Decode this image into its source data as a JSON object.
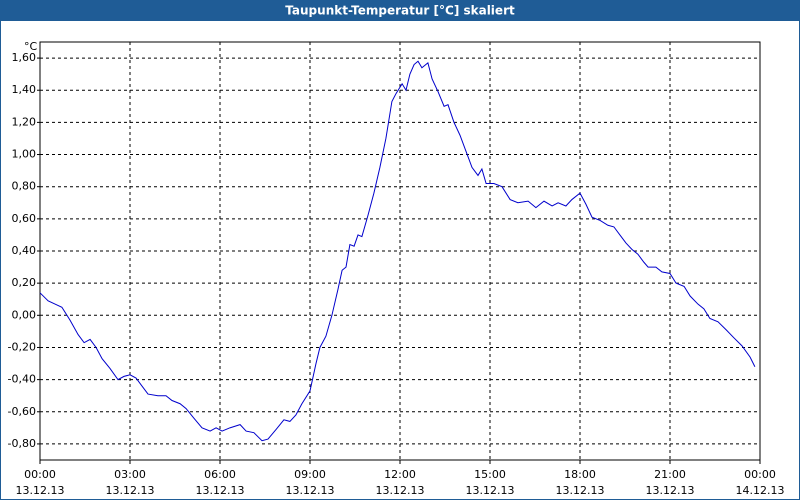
{
  "chart_data": {
    "type": "line",
    "title": "Taupunkt-Temperatur [°C] skaliert",
    "y_label": "°C",
    "xlim": [
      0,
      24
    ],
    "ylim": [
      -0.9,
      1.7
    ],
    "grid": true,
    "xticks": [
      {
        "value": 0,
        "label": "00:00",
        "date": "13.12.13"
      },
      {
        "value": 3,
        "label": "03:00",
        "date": "13.12.13"
      },
      {
        "value": 6,
        "label": "06:00",
        "date": "13.12.13"
      },
      {
        "value": 9,
        "label": "09:00",
        "date": "13.12.13"
      },
      {
        "value": 12,
        "label": "12:00",
        "date": "13.12.13"
      },
      {
        "value": 15,
        "label": "15:00",
        "date": "13.12.13"
      },
      {
        "value": 18,
        "label": "18:00",
        "date": "13.12.13"
      },
      {
        "value": 21,
        "label": "21:00",
        "date": "13.12.13"
      },
      {
        "value": 24,
        "label": "00:00",
        "date": "14.12.13"
      }
    ],
    "yticks": [
      {
        "value": 1.6,
        "label": "1,60"
      },
      {
        "value": 1.4,
        "label": "1,40"
      },
      {
        "value": 1.2,
        "label": "1,20"
      },
      {
        "value": 1.0,
        "label": "1,00"
      },
      {
        "value": 0.8,
        "label": "0,80"
      },
      {
        "value": 0.6,
        "label": "0,60"
      },
      {
        "value": 0.4,
        "label": "0,40"
      },
      {
        "value": 0.2,
        "label": "0,20"
      },
      {
        "value": 0,
        "label": "0,00"
      },
      {
        "value": -0.2,
        "label": "-0,20"
      },
      {
        "value": -0.4,
        "label": "-0,40"
      },
      {
        "value": -0.6,
        "label": "-0,60"
      },
      {
        "value": -0.8,
        "label": "-0,80"
      }
    ],
    "series": [
      {
        "color": "#0000cc",
        "x": [
          0,
          0.27,
          0.5,
          0.73,
          1.0,
          1.27,
          1.47,
          1.67,
          1.87,
          2.07,
          2.33,
          2.6,
          2.8,
          3.0,
          3.2,
          3.4,
          3.6,
          3.93,
          4.2,
          4.4,
          4.67,
          4.87,
          5.13,
          5.4,
          5.67,
          5.87,
          6.07,
          6.33,
          6.67,
          6.87,
          7.13,
          7.4,
          7.6,
          7.87,
          8.13,
          8.33,
          8.53,
          8.73,
          9.0,
          9.2,
          9.33,
          9.53,
          9.73,
          9.93,
          10.07,
          10.2,
          10.33,
          10.47,
          10.6,
          10.73,
          10.93,
          11.13,
          11.33,
          11.53,
          11.73,
          11.87,
          12.07,
          12.2,
          12.33,
          12.47,
          12.6,
          12.73,
          12.93,
          13.07,
          13.27,
          13.47,
          13.6,
          13.8,
          14.0,
          14.2,
          14.4,
          14.6,
          14.73,
          14.87,
          15.13,
          15.4,
          15.67,
          15.93,
          16.27,
          16.53,
          16.8,
          17.07,
          17.27,
          17.53,
          17.73,
          18.0,
          18.2,
          18.4,
          18.67,
          18.93,
          19.13,
          19.33,
          19.53,
          19.73,
          19.93,
          20.13,
          20.27,
          20.53,
          20.73,
          21.0,
          21.2,
          21.47,
          21.67,
          21.93,
          22.13,
          22.33,
          22.6,
          22.87,
          23.13,
          23.4,
          23.67,
          23.83
        ],
        "values": [
          0.14,
          0.09,
          0.07,
          0.05,
          -0.03,
          -0.12,
          -0.17,
          -0.15,
          -0.2,
          -0.27,
          -0.33,
          -0.4,
          -0.38,
          -0.37,
          -0.39,
          -0.44,
          -0.49,
          -0.5,
          -0.5,
          -0.53,
          -0.55,
          -0.58,
          -0.64,
          -0.7,
          -0.72,
          -0.7,
          -0.72,
          -0.7,
          -0.68,
          -0.72,
          -0.73,
          -0.78,
          -0.77,
          -0.71,
          -0.65,
          -0.66,
          -0.62,
          -0.55,
          -0.47,
          -0.3,
          -0.2,
          -0.13,
          0.0,
          0.16,
          0.28,
          0.3,
          0.44,
          0.43,
          0.5,
          0.49,
          0.62,
          0.76,
          0.92,
          1.1,
          1.33,
          1.38,
          1.44,
          1.4,
          1.5,
          1.56,
          1.58,
          1.54,
          1.57,
          1.47,
          1.39,
          1.3,
          1.31,
          1.2,
          1.12,
          1.02,
          0.92,
          0.87,
          0.91,
          0.82,
          0.82,
          0.8,
          0.72,
          0.7,
          0.71,
          0.67,
          0.71,
          0.68,
          0.7,
          0.68,
          0.72,
          0.76,
          0.69,
          0.61,
          0.59,
          0.56,
          0.55,
          0.5,
          0.45,
          0.41,
          0.38,
          0.33,
          0.3,
          0.3,
          0.27,
          0.26,
          0.2,
          0.18,
          0.12,
          0.07,
          0.04,
          -0.02,
          -0.04,
          -0.09,
          -0.14,
          -0.19,
          -0.26,
          -0.32
        ]
      }
    ]
  }
}
